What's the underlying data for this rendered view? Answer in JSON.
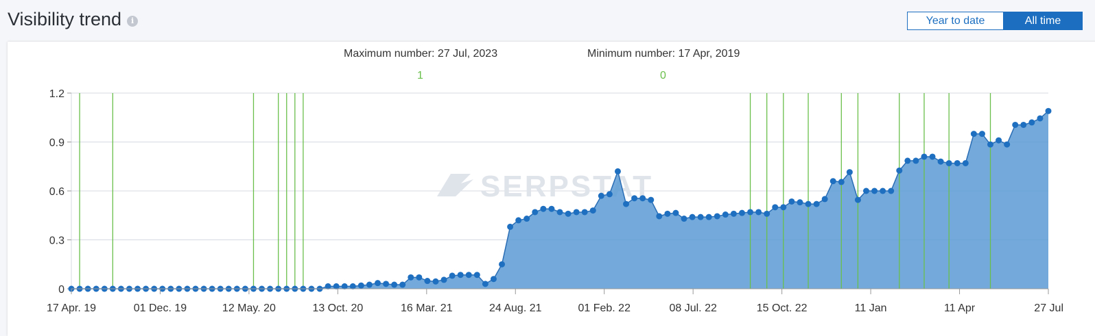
{
  "header": {
    "title": "Visibility trend",
    "info_icon": "info-icon"
  },
  "range_toggle": {
    "ytd_label": "Year to date",
    "all_label": "All time",
    "selected": "All time"
  },
  "stats": {
    "max_label": "Maximum number: 27 Jul, 2023",
    "max_value": "1",
    "min_label": "Minimum number: 17 Apr, 2019",
    "min_value": "0"
  },
  "watermark": "SERPSTAT",
  "colors": {
    "area": "#5b9bd5",
    "line": "#2a6db5",
    "marker": "#1f6fc0",
    "event": "#6abf4b",
    "grid": "#d5d9e2",
    "accent": "#1c6fc0"
  },
  "chart_data": {
    "type": "area",
    "title": "Visibility trend",
    "xlabel": "",
    "ylabel": "",
    "ylim": [
      0,
      1.2
    ],
    "yticks": [
      "0",
      "0.3",
      "0.6",
      "0.9",
      "1.2"
    ],
    "grid": true,
    "x_tick_labels": [
      "17 Apr. 19",
      "01 Dec. 19",
      "12 May. 20",
      "13 Oct. 20",
      "16 Mar. 21",
      "24 Aug. 21",
      "01 Feb. 22",
      "08 Jul. 22",
      "15 Oct. 22",
      "11 Jan",
      "11 Apr",
      "27 Jul"
    ],
    "x_range": [
      "2019-04-17",
      "2023-07-27"
    ],
    "series": [
      {
        "values": [
          0,
          0,
          0,
          0,
          0,
          0,
          0,
          0,
          0,
          0,
          0,
          0,
          0,
          0,
          0,
          0,
          0,
          0,
          0,
          0,
          0,
          0,
          0,
          0,
          0,
          0,
          0,
          0,
          0,
          0,
          0,
          0.015,
          0.015,
          0.015,
          0.015,
          0.02,
          0.025,
          0.035,
          0.03,
          0.025,
          0.025,
          0.07,
          0.07,
          0.048,
          0.045,
          0.055,
          0.08,
          0.085,
          0.085,
          0.085,
          0.03,
          0.06,
          0.15,
          0.38,
          0.42,
          0.43,
          0.47,
          0.49,
          0.49,
          0.47,
          0.46,
          0.47,
          0.47,
          0.48,
          0.57,
          0.58,
          0.72,
          0.52,
          0.555,
          0.555,
          0.545,
          0.445,
          0.46,
          0.465,
          0.43,
          0.44,
          0.44,
          0.44,
          0.445,
          0.455,
          0.46,
          0.465,
          0.47,
          0.47,
          0.46,
          0.5,
          0.5,
          0.535,
          0.53,
          0.52,
          0.52,
          0.55,
          0.66,
          0.655,
          0.715,
          0.545,
          0.6,
          0.6,
          0.6,
          0.6,
          0.725,
          0.785,
          0.785,
          0.81,
          0.81,
          0.78,
          0.77,
          0.77,
          0.77,
          0.95,
          0.95,
          0.885,
          0.91,
          0.885,
          1.005,
          1.005,
          1.02,
          1.045,
          1.09
        ]
      }
    ],
    "event_markers": [
      1,
      5,
      22,
      25,
      26,
      27,
      28,
      82,
      84,
      86,
      89,
      93,
      95,
      100,
      103,
      106,
      111
    ]
  }
}
